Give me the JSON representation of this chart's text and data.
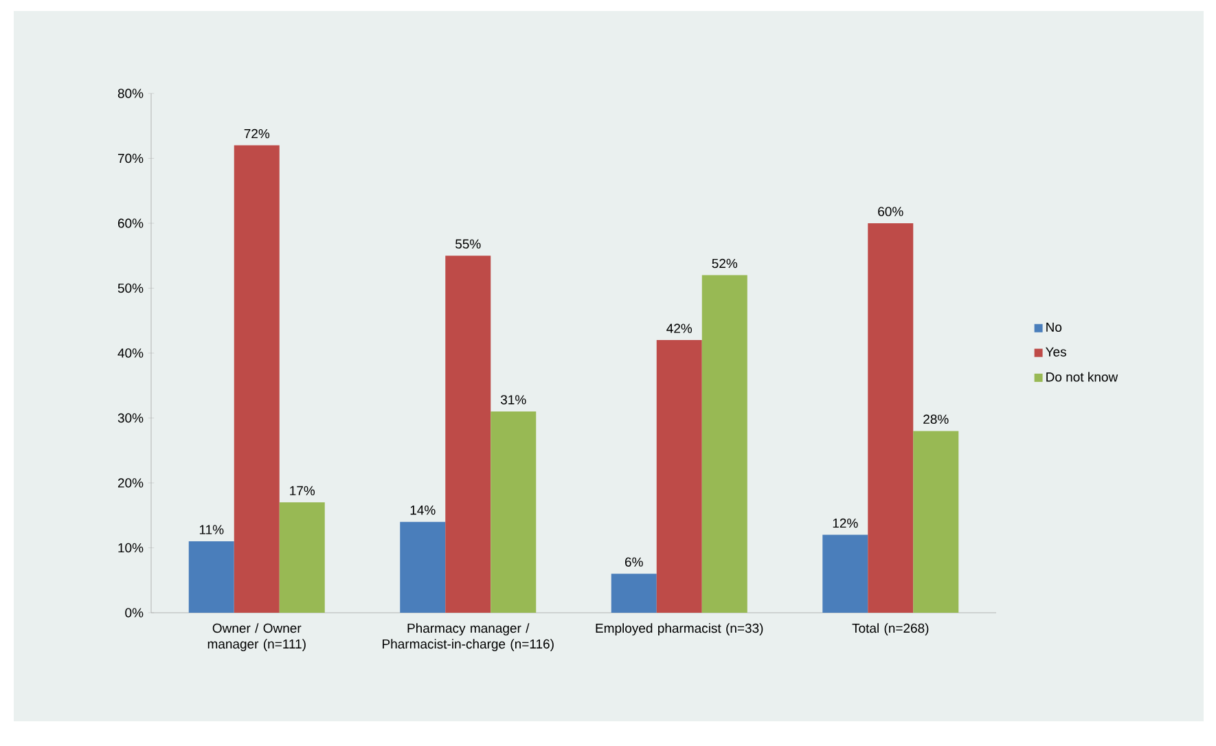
{
  "chart_data": {
    "type": "bar",
    "categories": [
      "Owner / Owner manager (n=111)",
      "Pharmacy manager / Pharmacist-in-charge (n=116)",
      "Employed pharmacist (n=33)",
      "Total (n=268)"
    ],
    "series": [
      {
        "name": "No",
        "color": "#4a7ebb",
        "values": [
          11,
          14,
          6,
          12
        ],
        "value_labels": [
          "11%",
          "14%",
          "6%",
          "12%"
        ]
      },
      {
        "name": "Yes",
        "color": "#be4b48",
        "values": [
          72,
          55,
          42,
          60
        ],
        "value_labels": [
          "72%",
          "55%",
          "42%",
          "60%"
        ]
      },
      {
        "name": "Do not know",
        "color": "#98b954",
        "values": [
          17,
          31,
          52,
          28
        ],
        "value_labels": [
          "17%",
          "31%",
          "52%",
          "28%"
        ]
      }
    ],
    "ylim": [
      0,
      80
    ],
    "yticks": [
      {
        "value": 0,
        "label": "0%"
      },
      {
        "value": 10,
        "label": "10%"
      },
      {
        "value": 20,
        "label": "20%"
      },
      {
        "value": 30,
        "label": "30%"
      },
      {
        "value": 40,
        "label": "40%"
      },
      {
        "value": 50,
        "label": "50%"
      },
      {
        "value": 60,
        "label": "60%"
      },
      {
        "value": 70,
        "label": "70%"
      },
      {
        "value": 80,
        "label": "80%"
      }
    ],
    "grid": false,
    "legend": "right"
  }
}
